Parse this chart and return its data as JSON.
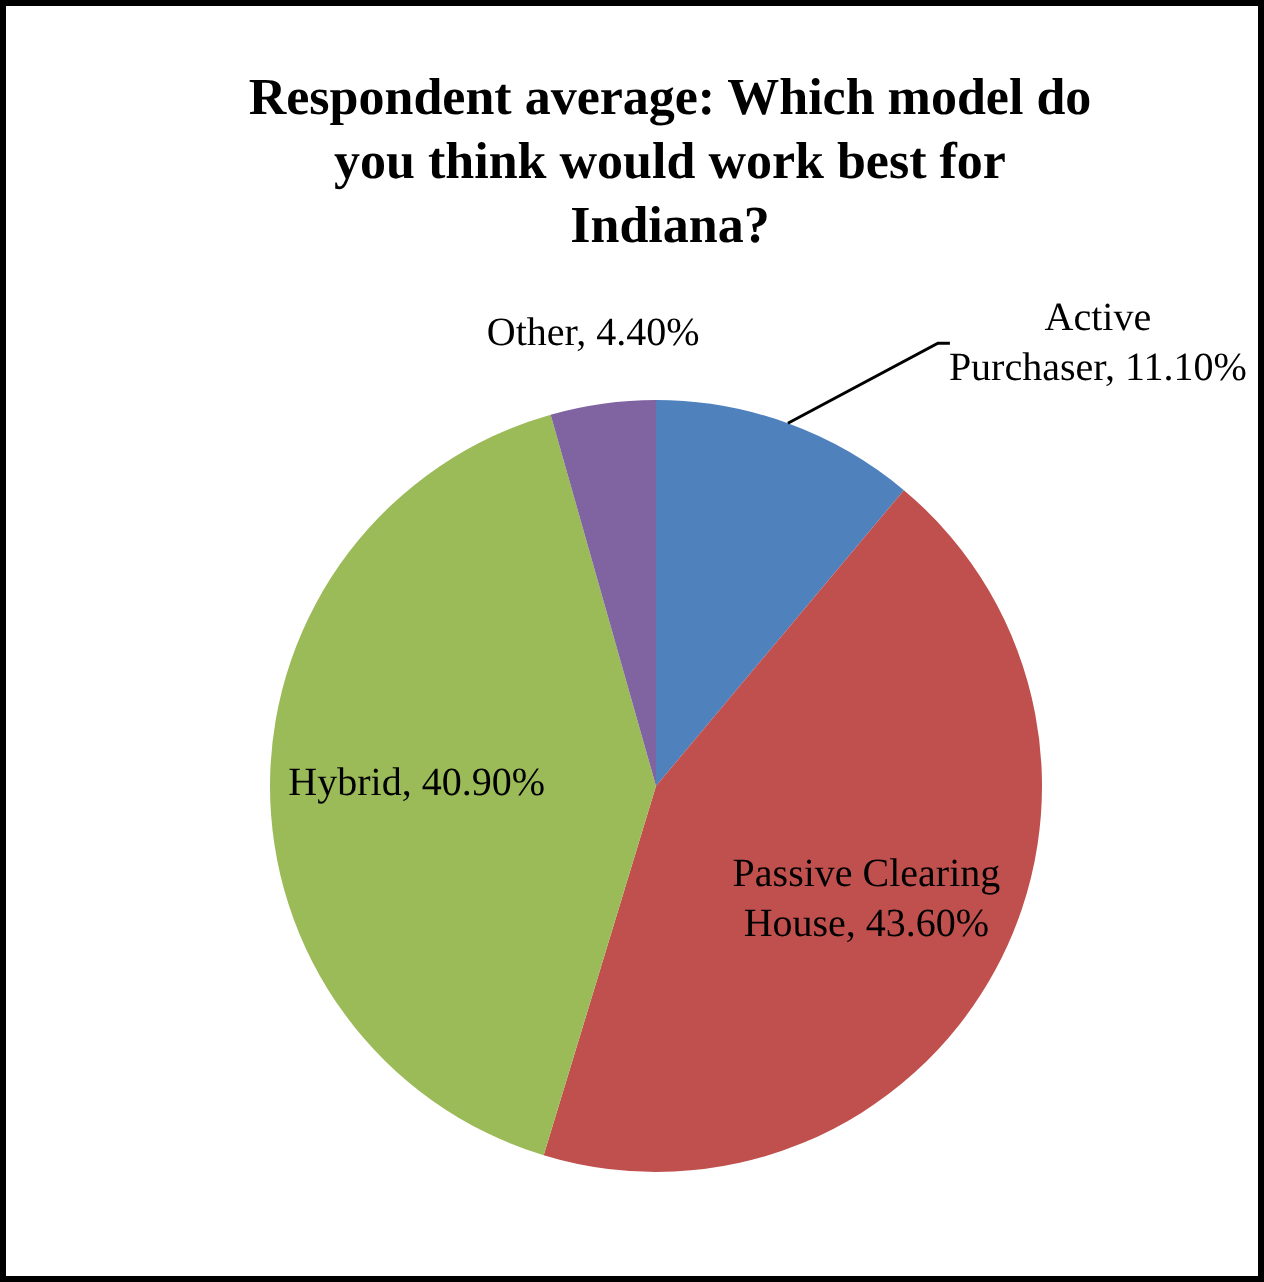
{
  "chart_data": {
    "type": "pie",
    "title": "Respondent average: Which model do you think would work best for Indiana?",
    "categories": [
      "Active Purchaser",
      "Passive Clearing House",
      "Hybrid",
      "Other"
    ],
    "values": [
      11.1,
      43.6,
      40.9,
      4.4
    ],
    "value_labels": [
      "11.10%",
      "43.60%",
      "40.90%",
      "4.40%"
    ],
    "colors": [
      "#4f81bd",
      "#c0504d",
      "#9bbb59",
      "#8064a2"
    ],
    "legend": false
  }
}
